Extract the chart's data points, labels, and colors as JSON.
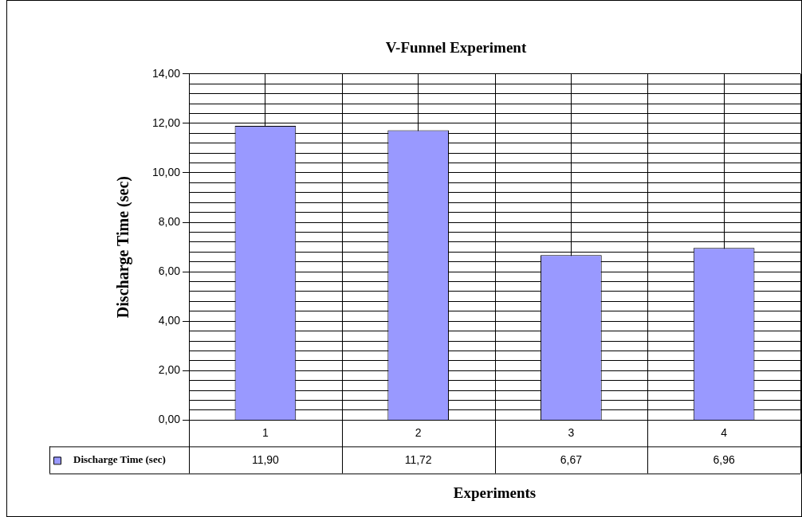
{
  "chart_data": {
    "type": "bar",
    "title": "V-Funnel Experiment",
    "xlabel": "Experiments",
    "ylabel": "Discharge Time (sec)",
    "categories": [
      "1",
      "2",
      "3",
      "4"
    ],
    "series": [
      {
        "name": "Discharge Time (sec)",
        "color": "#9999ff",
        "values": [
          11.9,
          11.72,
          6.67,
          6.96
        ],
        "value_labels": [
          "11,90",
          "11,72",
          "6,67",
          "6,96"
        ]
      }
    ],
    "ylim": [
      0,
      14
    ],
    "yticks": [
      {
        "value": 0,
        "label": "0,00"
      },
      {
        "value": 0.4,
        "label": null
      },
      {
        "value": 0.8,
        "label": null
      },
      {
        "value": 1.2,
        "label": null
      },
      {
        "value": 1.6,
        "label": null
      },
      {
        "value": 2,
        "label": "2,00"
      },
      {
        "value": 2.4,
        "label": null
      },
      {
        "value": 2.8,
        "label": null
      },
      {
        "value": 3.2,
        "label": null
      },
      {
        "value": 3.6,
        "label": null
      },
      {
        "value": 4,
        "label": "4,00"
      },
      {
        "value": 4.4,
        "label": null
      },
      {
        "value": 4.8,
        "label": null
      },
      {
        "value": 5.2,
        "label": null
      },
      {
        "value": 5.6,
        "label": null
      },
      {
        "value": 6,
        "label": "6,00"
      },
      {
        "value": 6.4,
        "label": null
      },
      {
        "value": 6.8,
        "label": null
      },
      {
        "value": 7.2,
        "label": null
      },
      {
        "value": 7.6,
        "label": null
      },
      {
        "value": 8,
        "label": "8,00"
      },
      {
        "value": 8.4,
        "label": null
      },
      {
        "value": 8.8,
        "label": null
      },
      {
        "value": 9.2,
        "label": null
      },
      {
        "value": 9.6,
        "label": null
      },
      {
        "value": 10,
        "label": "10,00"
      },
      {
        "value": 10.4,
        "label": null
      },
      {
        "value": 10.8,
        "label": null
      },
      {
        "value": 11.2,
        "label": null
      },
      {
        "value": 11.6,
        "label": null
      },
      {
        "value": 12,
        "label": "12,00"
      },
      {
        "value": 12.4,
        "label": null
      },
      {
        "value": 12.8,
        "label": null
      },
      {
        "value": 13.2,
        "label": null
      },
      {
        "value": 13.6,
        "label": null
      },
      {
        "value": 14,
        "label": "14,00"
      }
    ],
    "grid": true,
    "legend": "bottom left"
  }
}
